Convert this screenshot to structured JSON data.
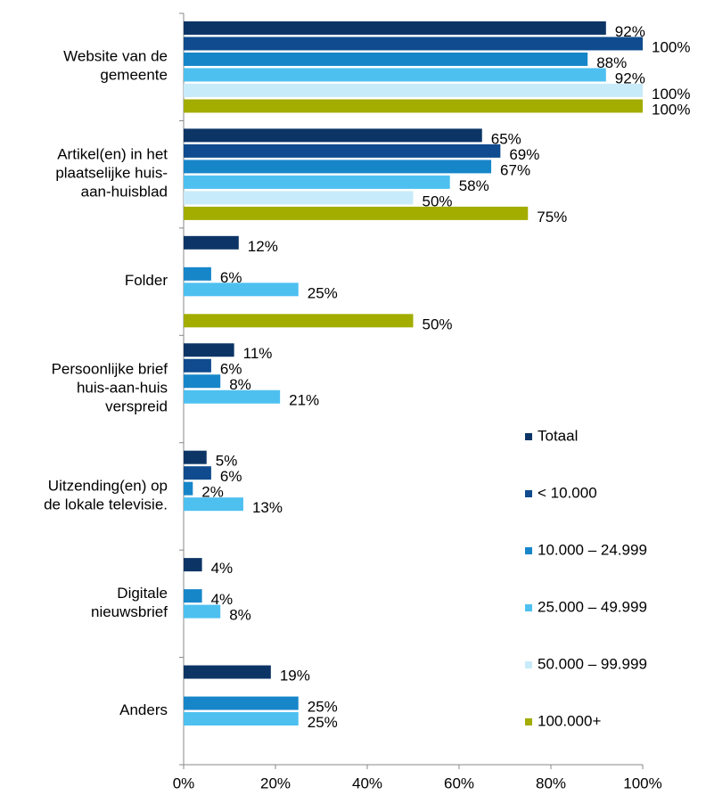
{
  "chart_data": {
    "type": "bar",
    "orientation": "horizontal",
    "categories": [
      "Website van de\ngemeente",
      "Artikel(en) in het\nplaatselijke huis-\naan-huisblad",
      "Folder",
      "Persoonlijke brief\nhuis-aan-huis\nverspreid",
      "Uitzending(en) op\nde lokale televisie.",
      "Digitale\nnieuwsbrief",
      "Anders"
    ],
    "series": [
      {
        "name": "Totaal",
        "color": "#0c3566",
        "values": [
          92,
          65,
          12,
          11,
          5,
          4,
          19
        ],
        "value_labels": [
          "92%",
          "65%",
          "12%",
          "11%",
          "5%",
          "4%",
          "19%"
        ]
      },
      {
        "name": "< 10.000",
        "color": "#0f4b8e",
        "values": [
          100,
          69,
          null,
          6,
          6,
          null,
          null
        ],
        "value_labels": [
          "100%",
          "69%",
          null,
          "6%",
          "6%",
          null,
          null
        ]
      },
      {
        "name": "10.000 – 24.999",
        "color": "#1786c9",
        "values": [
          88,
          67,
          6,
          8,
          2,
          4,
          25
        ],
        "value_labels": [
          "88%",
          "67%",
          "6%",
          "8%",
          "2%",
          "4%",
          "25%"
        ]
      },
      {
        "name": "25.000 – 49.999",
        "color": "#4dc0f0",
        "values": [
          92,
          58,
          25,
          21,
          13,
          8,
          25
        ],
        "value_labels": [
          "92%",
          "58%",
          "25%",
          "21%",
          "13%",
          "8%",
          "25%"
        ]
      },
      {
        "name": "50.000 – 99.999",
        "color": "#c8ebfa",
        "values": [
          100,
          50,
          null,
          null,
          null,
          null,
          null
        ],
        "value_labels": [
          "100%",
          "50%",
          null,
          null,
          null,
          null,
          null
        ]
      },
      {
        "name": "100.000+",
        "color": "#a2ad00",
        "values": [
          100,
          75,
          50,
          null,
          null,
          null,
          null
        ],
        "value_labels": [
          "100%",
          "75%",
          "50%",
          null,
          null,
          null,
          null
        ]
      }
    ],
    "xlim": [
      0,
      100
    ],
    "xticks": [
      {
        "value": 0,
        "label": "0%"
      },
      {
        "value": 20,
        "label": "20%"
      },
      {
        "value": 40,
        "label": "40%"
      },
      {
        "value": 60,
        "label": "60%"
      },
      {
        "value": 80,
        "label": "80%"
      },
      {
        "value": 100,
        "label": "100%"
      }
    ],
    "legend": "right"
  }
}
